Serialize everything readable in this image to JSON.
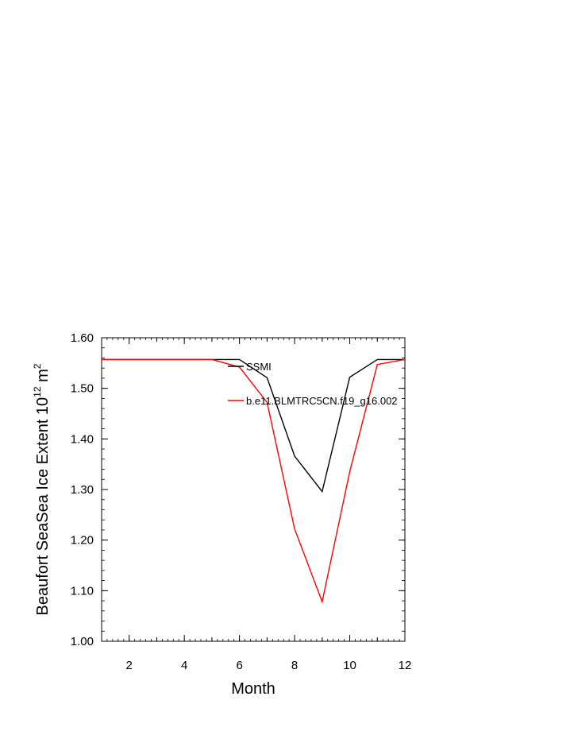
{
  "chart_data": {
    "type": "line",
    "xlabel": "Month",
    "ylabel": {
      "prefix": "Beaufort SeaSea Ice Extent 10",
      "exp1": "12",
      "mid": " m",
      "exp2": "2"
    },
    "xlim": [
      1,
      12
    ],
    "ylim": [
      1.0,
      1.6
    ],
    "xticks": [
      2,
      4,
      6,
      8,
      10,
      12
    ],
    "yticks": [
      1.0,
      1.1,
      1.2,
      1.3,
      1.4,
      1.5,
      1.6
    ],
    "ytick_labels": [
      "1.00",
      "1.10",
      "1.20",
      "1.30",
      "1.40",
      "1.50",
      "1.60"
    ],
    "x": [
      1,
      2,
      3,
      4,
      5,
      6,
      7,
      8,
      9,
      10,
      11,
      12
    ],
    "series": [
      {
        "name": "SSMI",
        "color": "#000000",
        "values": [
          1.557,
          1.557,
          1.557,
          1.557,
          1.557,
          1.557,
          1.521,
          1.366,
          1.296,
          1.522,
          1.557,
          1.557
        ]
      },
      {
        "name": "b.e11.BLMTRC5CN.f19_g16.002",
        "color": "#ff0000",
        "values": [
          1.557,
          1.557,
          1.557,
          1.557,
          1.557,
          1.542,
          1.472,
          1.222,
          1.078,
          1.335,
          1.547,
          1.557
        ]
      }
    ],
    "legend": "inside-top-right",
    "grid": false
  }
}
